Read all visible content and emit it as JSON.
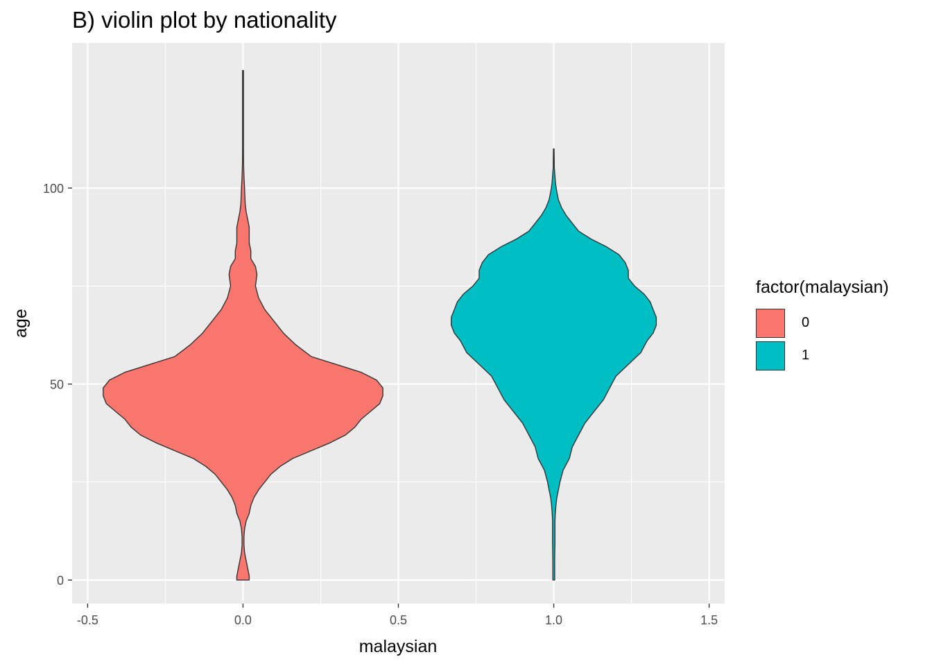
{
  "chart_data": {
    "type": "violin",
    "title": "B) violin plot by nationality",
    "xlabel": "malaysian",
    "ylabel": "age",
    "xlim": [
      -0.55,
      1.55
    ],
    "ylim": [
      -6,
      137
    ],
    "x_ticks": [
      -0.5,
      0.0,
      0.5,
      1.0,
      1.5
    ],
    "x_tick_labels": [
      "-0.5",
      "0.0",
      "0.5",
      "1.0",
      "1.5"
    ],
    "y_ticks": [
      0,
      50,
      100
    ],
    "y_tick_labels": [
      "0",
      "50",
      "100"
    ],
    "grid": true,
    "legend": {
      "title": "factor(malaysian)",
      "position": "right",
      "items": [
        {
          "label": "0",
          "color": "#F8766D"
        },
        {
          "label": "1",
          "color": "#00BFC4"
        }
      ]
    },
    "series": [
      {
        "name": "0",
        "x": 0.0,
        "color": "#F8766D",
        "profile": [
          [
            0,
            0.02
          ],
          [
            1,
            0.02
          ],
          [
            3,
            0.015
          ],
          [
            5,
            0.01
          ],
          [
            7,
            0.005
          ],
          [
            9,
            0.003
          ],
          [
            11,
            0.003
          ],
          [
            13,
            0.005
          ],
          [
            15,
            0.01
          ],
          [
            17,
            0.02
          ],
          [
            19,
            0.025
          ],
          [
            21,
            0.035
          ],
          [
            23,
            0.05
          ],
          [
            25,
            0.07
          ],
          [
            27,
            0.09
          ],
          [
            29,
            0.12
          ],
          [
            31,
            0.16
          ],
          [
            33,
            0.22
          ],
          [
            35,
            0.28
          ],
          [
            37,
            0.33
          ],
          [
            39,
            0.36
          ],
          [
            41,
            0.38
          ],
          [
            43,
            0.41
          ],
          [
            45,
            0.44
          ],
          [
            47,
            0.45
          ],
          [
            49,
            0.45
          ],
          [
            50,
            0.44
          ],
          [
            51,
            0.43
          ],
          [
            53,
            0.38
          ],
          [
            55,
            0.3
          ],
          [
            57,
            0.22
          ],
          [
            60,
            0.17
          ],
          [
            63,
            0.13
          ],
          [
            66,
            0.1
          ],
          [
            69,
            0.07
          ],
          [
            72,
            0.05
          ],
          [
            75,
            0.04
          ],
          [
            78,
            0.045
          ],
          [
            80,
            0.04
          ],
          [
            82,
            0.025
          ],
          [
            84,
            0.025
          ],
          [
            86,
            0.02
          ],
          [
            88,
            0.02
          ],
          [
            90,
            0.02
          ],
          [
            92,
            0.015
          ],
          [
            94,
            0.01
          ],
          [
            96,
            0.007
          ],
          [
            98,
            0.006
          ],
          [
            100,
            0.005
          ],
          [
            103,
            0.003
          ],
          [
            106,
            0.002
          ],
          [
            110,
            0.0015
          ],
          [
            130,
            0.0015
          ]
        ]
      },
      {
        "name": "1",
        "x": 1.0,
        "color": "#00BFC4",
        "profile": [
          [
            0,
            0.003
          ],
          [
            1,
            0.003
          ],
          [
            5,
            0.003
          ],
          [
            10,
            0.004
          ],
          [
            15,
            0.004
          ],
          [
            17,
            0.005
          ],
          [
            19,
            0.007
          ],
          [
            21,
            0.01
          ],
          [
            23,
            0.015
          ],
          [
            25,
            0.02
          ],
          [
            28,
            0.03
          ],
          [
            31,
            0.05
          ],
          [
            34,
            0.06
          ],
          [
            37,
            0.08
          ],
          [
            40,
            0.1
          ],
          [
            43,
            0.13
          ],
          [
            46,
            0.16
          ],
          [
            49,
            0.18
          ],
          [
            52,
            0.2
          ],
          [
            55,
            0.24
          ],
          [
            58,
            0.28
          ],
          [
            61,
            0.3
          ],
          [
            63,
            0.32
          ],
          [
            65,
            0.33
          ],
          [
            67,
            0.33
          ],
          [
            69,
            0.32
          ],
          [
            71,
            0.31
          ],
          [
            73,
            0.29
          ],
          [
            75,
            0.26
          ],
          [
            77,
            0.24
          ],
          [
            79,
            0.24
          ],
          [
            81,
            0.23
          ],
          [
            83,
            0.21
          ],
          [
            85,
            0.17
          ],
          [
            87,
            0.12
          ],
          [
            89,
            0.08
          ],
          [
            91,
            0.06
          ],
          [
            93,
            0.04
          ],
          [
            95,
            0.025
          ],
          [
            97,
            0.015
          ],
          [
            99,
            0.01
          ],
          [
            101,
            0.006
          ],
          [
            103,
            0.004
          ],
          [
            105,
            0.002
          ],
          [
            110,
            0.001
          ]
        ]
      }
    ]
  }
}
